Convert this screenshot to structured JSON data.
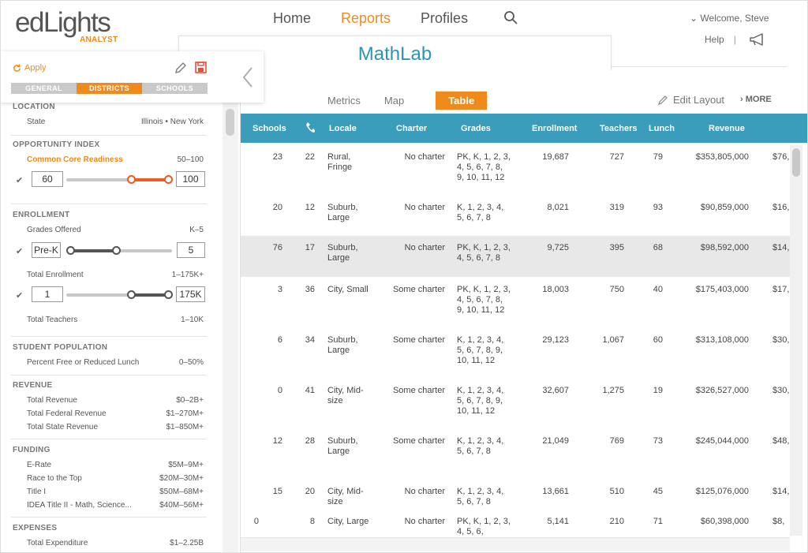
{
  "header": {
    "logo_main": "edLights",
    "logo_sub": "ANALYST",
    "nav": [
      "Home",
      "Reports",
      "Profiles"
    ],
    "nav_active": "Reports",
    "welcome": "Welcome, Steve",
    "help": "Help",
    "help_sep": "|"
  },
  "title": "MathLab",
  "view_tabs": {
    "metrics": "Metrics",
    "map": "Map",
    "table": "Table"
  },
  "edit_layout": "Edit Layout",
  "more": "MORE",
  "sidebar": {
    "apply": "Apply",
    "tabs": [
      "GENERAL",
      "DISTRICTS",
      "SCHOOLS"
    ],
    "active_tab": "DISTRICTS",
    "location": {
      "title": "LOCATION",
      "state_label": "State",
      "state_value": "Illinois • New York"
    },
    "opportunity": {
      "title": "OPPORTUNITY INDEX",
      "ccr_label": "Common Core Readiness",
      "ccr_range": "50–100",
      "min": "60",
      "max": "100"
    },
    "enrollment": {
      "title": "ENROLLMENT",
      "grades_label": "Grades Offered",
      "grades_range": "K–5",
      "grades_min": "Pre-K",
      "grades_max": "5",
      "total_label": "Total Enrollment",
      "total_range": "1–175K+",
      "total_min": "1",
      "total_max": "175K",
      "teachers_label": "Total Teachers",
      "teachers_range": "1–10K"
    },
    "student_population": {
      "title": "STUDENT POPULATION",
      "frl_label": "Percent Free or Reduced Lunch",
      "frl_range": "0–50%"
    },
    "revenue": {
      "title": "REVENUE",
      "items": [
        {
          "label": "Total Revenue",
          "value": "$0–2B+"
        },
        {
          "label": "Total Federal Revenue",
          "value": "$1–270M+"
        },
        {
          "label": "Total State Revenue",
          "value": "$1–850M+"
        }
      ]
    },
    "funding": {
      "title": "FUNDING",
      "items": [
        {
          "label": "E-Rate",
          "value": "$5M–9M+"
        },
        {
          "label": "Race to the Top",
          "value": "$20M–30M+"
        },
        {
          "label": "Title I",
          "value": "$50M–68M+"
        },
        {
          "label": "IDEA Title II - Math, Science...",
          "value": "$40M–56M+"
        }
      ]
    },
    "expenses": {
      "title": "EXPENSES",
      "item_label": "Total Expenditure",
      "item_value": "$1–2.25B"
    }
  },
  "table": {
    "headers": {
      "schools": "Schools",
      "locale": "Locale",
      "charter": "Charter",
      "grades": "Grades",
      "enrollment": "Enrollment",
      "teachers": "Teachers",
      "lunch": "Lunch",
      "revenue": "Revenue"
    },
    "rows": [
      {
        "schools": "23",
        "phone": "22",
        "locale": "Rural, Fringe",
        "charter": "No charter",
        "grades": "PK, K, 1, 2, 3, 4, 5, 6, 7, 8, 9, 10, 11, 12",
        "enrollment": "19,687",
        "teachers": "727",
        "lunch": "79",
        "revenue": "$353,805,000",
        "extra": "$76,"
      },
      {
        "schools": "20",
        "phone": "12",
        "locale": "Suburb, Large",
        "charter": "No charter",
        "grades": "K, 1, 2, 3, 4, 5, 6, 7, 8",
        "enrollment": "8,021",
        "teachers": "319",
        "lunch": "93",
        "revenue": "$90,859,000",
        "extra": "$16,"
      },
      {
        "schools": "76",
        "phone": "17",
        "locale": "Suburb, Large",
        "charter": "No charter",
        "grades": "PK, K, 1, 2, 3, 4, 5, 6, 7, 8",
        "enrollment": "9,725",
        "teachers": "395",
        "lunch": "68",
        "revenue": "$98,592,000",
        "extra": "$14,"
      },
      {
        "schools": "3",
        "phone": "36",
        "locale": "City, Small",
        "charter": "Some charter",
        "grades": "PK, K, 1, 2, 3, 4, 5, 6, 7, 8, 9, 10, 11, 12",
        "enrollment": "18,003",
        "teachers": "750",
        "lunch": "40",
        "revenue": "$175,403,000",
        "extra": "$17,"
      },
      {
        "schools": "6",
        "phone": "34",
        "locale": "Suburb, Large",
        "charter": "Some charter",
        "grades": "K, 1, 2, 3, 4, 5, 6, 7, 8, 9, 10, 11, 12",
        "enrollment": "29,123",
        "teachers": "1,067",
        "lunch": "60",
        "revenue": "$313,108,000",
        "extra": "$30,"
      },
      {
        "schools": "0",
        "phone": "41",
        "locale": "City, Mid-size",
        "charter": "Some charter",
        "grades": "K, 1, 2, 3, 4, 5, 6, 7, 8, 9, 10, 11, 12",
        "enrollment": "32,607",
        "teachers": "1,275",
        "lunch": "19",
        "revenue": "$326,527,000",
        "extra": "$30,"
      },
      {
        "schools": "12",
        "phone": "28",
        "locale": "Suburb, Large",
        "charter": "Some charter",
        "grades": "K, 1, 2, 3, 4, 5, 6, 7, 8",
        "enrollment": "21,049",
        "teachers": "769",
        "lunch": "73",
        "revenue": "$245,044,000",
        "extra": "$48,"
      },
      {
        "schools": "15",
        "phone": "20",
        "locale": "City, Mid-size",
        "charter": "No charter",
        "grades": "K, 1, 2, 3, 4, 5, 6, 7, 8",
        "enrollment": "13,661",
        "teachers": "510",
        "lunch": "45",
        "revenue": "$125,076,000",
        "extra": "$14,"
      },
      {
        "schools": "0",
        "phone": "8",
        "locale": "City, Large",
        "charter": "No charter",
        "grades": "PK, K, 1, 2, 3, 4, 5, 6,",
        "enrollment": "5,141",
        "teachers": "210",
        "lunch": "71",
        "revenue": "$60,398,000",
        "extra": "$8,"
      }
    ]
  }
}
